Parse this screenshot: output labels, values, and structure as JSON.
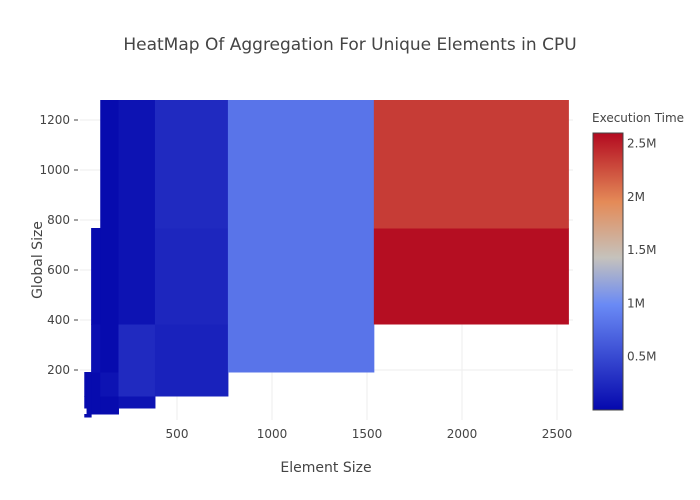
{
  "chart_data": {
    "type": "heatmap",
    "title": "HeatMap Of Aggregation For Unique Elements in CPU",
    "xlabel": "Element Size",
    "ylabel": "Global Size",
    "x": [
      16,
      32,
      64,
      128,
      256,
      512,
      1024,
      2048
    ],
    "y": [
      16,
      32,
      64,
      128,
      256,
      512,
      1024
    ],
    "z": [
      [
        20000,
        20000,
        null,
        null,
        null,
        null,
        null,
        null
      ],
      [
        null,
        20000,
        20000,
        20000,
        null,
        null,
        null,
        null
      ],
      [
        20000,
        20000,
        20000,
        20000,
        80000,
        null,
        null,
        null
      ],
      [
        20000,
        20000,
        20000,
        80000,
        260000,
        200000,
        null,
        null
      ],
      [
        null,
        null,
        60000,
        20000,
        260000,
        200000,
        820000,
        null
      ],
      [
        null,
        null,
        20000,
        20000,
        80000,
        230000,
        820000,
        2580000
      ],
      [
        null,
        null,
        null,
        20000,
        80000,
        260000,
        820000,
        2350000
      ]
    ],
    "xticks": [
      500,
      1000,
      1500,
      2000,
      2500
    ],
    "yticks": [
      200,
      400,
      600,
      800,
      1000,
      1200
    ],
    "xtick_labels": [
      "500",
      "1000",
      "1500",
      "2000",
      "2500"
    ],
    "ytick_labels": [
      "200",
      "400",
      "600",
      "800",
      "1000",
      "1200"
    ],
    "colorbar": {
      "title": "Execution Time",
      "range": [
        0,
        2600000
      ],
      "ticks": [
        500000,
        1000000,
        1500000,
        2000000,
        2500000
      ],
      "tick_labels": [
        "0.5M",
        "1M",
        "1.5M",
        "2M",
        "2.5M"
      ],
      "colorscale": [
        [
          0,
          "#0508ad"
        ],
        [
          0.38,
          "#6a8af5"
        ],
        [
          0.55,
          "#c5c2bc"
        ],
        [
          0.75,
          "#e48b58"
        ],
        [
          1,
          "#b30a20"
        ]
      ]
    },
    "grid": true
  }
}
